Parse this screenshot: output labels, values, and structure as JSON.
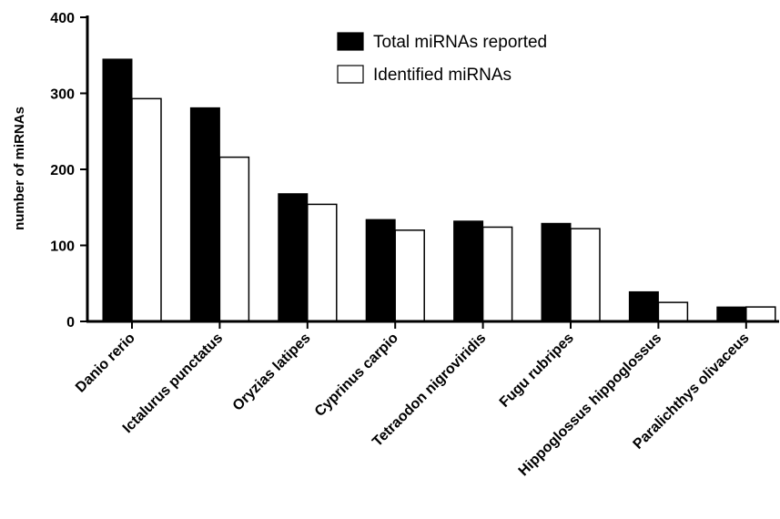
{
  "chart_data": {
    "type": "bar",
    "title": "",
    "xlabel": "",
    "ylabel": "number of miRNAs",
    "ylim": [
      0,
      400
    ],
    "yticks": [
      0,
      100,
      200,
      300,
      400
    ],
    "categories": [
      "Danio rerio",
      "Ictalurus punctatus",
      "Oryzias latipes",
      "Cyprinus carpio",
      "Tetraodon nigroviridis",
      "Fugu rubripes",
      "Hippoglossus hippoglossus",
      "Paralichthys olivaceus"
    ],
    "series": [
      {
        "name": "Total miRNAs reported",
        "color": "#000000",
        "values": [
          345,
          281,
          168,
          134,
          132,
          129,
          39,
          19
        ]
      },
      {
        "name": "Identified miRNAs",
        "color": "#ffffff",
        "values": [
          293,
          216,
          154,
          120,
          124,
          122,
          25,
          19
        ]
      }
    ],
    "legend_position": "top-right",
    "grid": false
  }
}
